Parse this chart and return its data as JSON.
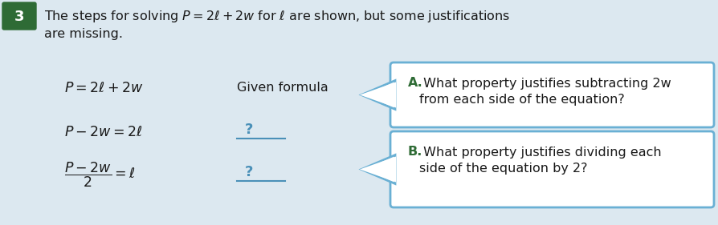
{
  "bg_color": "#dce8f0",
  "header_bg": "#2e6b35",
  "header_text": "3",
  "title_line1": "The steps for solving $P = 2\\ell + 2w$ for $\\ell$ are shown, but some justifications",
  "title_line2": "are missing.",
  "eq1": "$P = 2\\ell + 2w$",
  "label1": "Given formula",
  "eq2": "$P - 2w = 2\\ell$",
  "label2": "?",
  "eq3": "$\\dfrac{P - 2w}{2} = \\ell$",
  "label3": "?",
  "box_a_label": "A.",
  "box_a_text1": " What property justifies subtracting 2",
  "box_a_italic": "w",
  "box_a_text2": "from each side of the equation?",
  "box_b_label": "B.",
  "box_b_text1": " What property justifies dividing each",
  "box_b_text2": "side of the equation by 2?",
  "box_border_color": "#6ab0d4",
  "box_fill_color": "#ffffff",
  "text_color": "#1a1a1a",
  "label_color": "#2e6b35",
  "question_color": "#4a90b8",
  "underline_color": "#4a90b8",
  "arrow_color": "#5aa0c0",
  "title_color": "#1a1a1a",
  "font_size_title": 11.5,
  "font_size_eq": 12.5,
  "font_size_box": 11.5,
  "font_size_question": 13
}
